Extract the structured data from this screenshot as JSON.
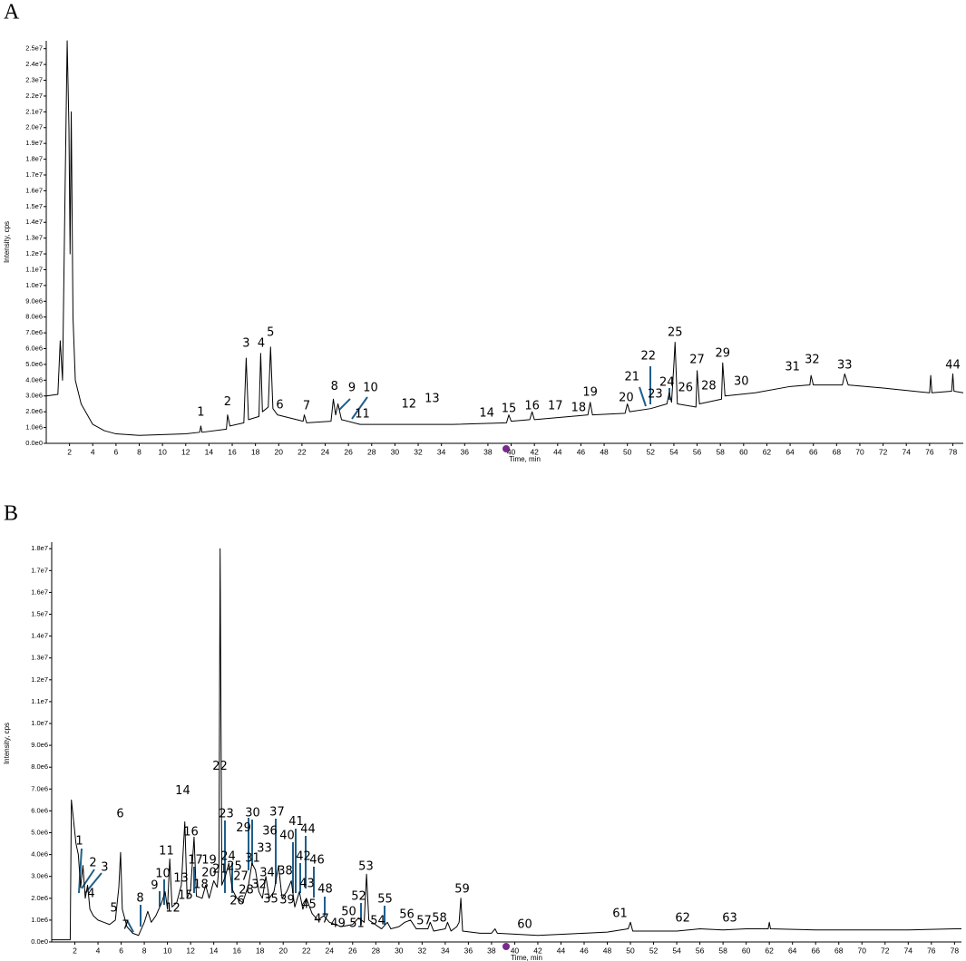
{
  "chart_data": [
    {
      "type": "line",
      "panel": "A",
      "xlabel": "Time, min",
      "ylabel": "Intensity, cps",
      "xlim": [
        0,
        78.9
      ],
      "ylim": [
        0,
        25500000.0
      ],
      "xticks": [
        2,
        4,
        6,
        8,
        10,
        12,
        14,
        16,
        18,
        20,
        22,
        24,
        26,
        28,
        30,
        32,
        34,
        36,
        38,
        40,
        42,
        44,
        46,
        48,
        50,
        52,
        54,
        56,
        58,
        60,
        62,
        64,
        66,
        68,
        70,
        72,
        74,
        76,
        78
      ],
      "yticks": [
        {
          "value": 0,
          "label": "0.0e0"
        },
        {
          "value": 1000000.0,
          "label": "1.0e6"
        },
        {
          "value": 2000000.0,
          "label": "2.0e6"
        },
        {
          "value": 3000000.0,
          "label": "3.0e6"
        },
        {
          "value": 4000000.0,
          "label": "4.0e6"
        },
        {
          "value": 5000000.0,
          "label": "5.0e6"
        },
        {
          "value": 6000000.0,
          "label": "6.0e6"
        },
        {
          "value": 7000000.0,
          "label": "7.0e6"
        },
        {
          "value": 8000000.0,
          "label": "8.0e6"
        },
        {
          "value": 9000000.0,
          "label": "9.0e6"
        },
        {
          "value": 10000000.0,
          "label": "1.0e7"
        },
        {
          "value": 11000000.0,
          "label": "1.1e7"
        },
        {
          "value": 12000000.0,
          "label": "1.2e7"
        },
        {
          "value": 13000000.0,
          "label": "1.3e7"
        },
        {
          "value": 14000000.0,
          "label": "1.4e7"
        },
        {
          "value": 15000000.0,
          "label": "1.5e7"
        },
        {
          "value": 16000000.0,
          "label": "1.6e7"
        },
        {
          "value": 17000000.0,
          "label": "1.7e7"
        },
        {
          "value": 18000000.0,
          "label": "1.8e7"
        },
        {
          "value": 19000000.0,
          "label": "1.9e7"
        },
        {
          "value": 20000000.0,
          "label": "2.0e7"
        },
        {
          "value": 21000000.0,
          "label": "2.1e7"
        },
        {
          "value": 22000000.0,
          "label": "2.2e7"
        },
        {
          "value": 23000000.0,
          "label": "2.3e7"
        },
        {
          "value": 24000000.0,
          "label": "2.4e7"
        },
        {
          "value": 25000000.0,
          "label": "2.5e7"
        }
      ],
      "series": [
        {
          "color": "#000000",
          "x": [
            0,
            1.0,
            1.2,
            1.4,
            1.6,
            1.8,
            1.95,
            2.05,
            2.15,
            2.3,
            2.5,
            3,
            4,
            5,
            6,
            8,
            10,
            12,
            13.2,
            13.3,
            13.4,
            15.5,
            15.6,
            15.8,
            17.0,
            17.2,
            17.4,
            18.3,
            18.45,
            18.6,
            19.1,
            19.3,
            19.5,
            19.9,
            22.1,
            22.2,
            22.4,
            24.5,
            24.7,
            24.9,
            25.1,
            25.4,
            27,
            30,
            35,
            39.6,
            39.8,
            40.0,
            41.6,
            41.8,
            42.0,
            46.6,
            46.8,
            47.0,
            49.8,
            50.0,
            50.2,
            52,
            53.4,
            53.6,
            53.8,
            54.0,
            54.1,
            54.3,
            55.9,
            56.0,
            56.2,
            58.1,
            58.2,
            58.4,
            61,
            64,
            65.7,
            65.8,
            66.0,
            68.5,
            68.7,
            69.0,
            72,
            76.0,
            76.1,
            76.2,
            77.9,
            78.0,
            78.1,
            78.9
          ],
          "values": [
            3000000.0,
            3100000.0,
            6500000.0,
            4000000.0,
            15000000.0,
            25500000.0,
            20000000.0,
            12000000.0,
            21000000.0,
            8000000.0,
            4000000.0,
            2500000.0,
            1200000.0,
            800000.0,
            600000.0,
            500000.0,
            550000.0,
            600000.0,
            700000.0,
            1100000.0,
            700000.0,
            900000.0,
            1800000.0,
            1100000.0,
            1300000.0,
            5400000.0,
            1500000.0,
            1700000.0,
            5700000.0,
            2000000.0,
            2300000.0,
            6100000.0,
            2200000.0,
            1800000.0,
            1400000.0,
            1800000.0,
            1300000.0,
            1400000.0,
            2800000.0,
            1800000.0,
            2500000.0,
            1500000.0,
            1200000.0,
            1200000.0,
            1200000.0,
            1300000.0,
            1800000.0,
            1400000.0,
            1500000.0,
            2000000.0,
            1500000.0,
            1800000.0,
            2600000.0,
            1800000.0,
            1900000.0,
            2500000.0,
            2000000.0,
            2200000.0,
            2500000.0,
            3200000.0,
            2600000.0,
            5000000.0,
            6400000.0,
            2500000.0,
            2300000.0,
            4600000.0,
            2500000.0,
            2800000.0,
            5100000.0,
            3000000.0,
            3200000.0,
            3600000.0,
            3700000.0,
            4300000.0,
            3700000.0,
            3700000.0,
            4400000.0,
            3700000.0,
            3500000.0,
            3200000.0,
            4300000.0,
            3200000.0,
            3300000.0,
            4400000.0,
            3300000.0,
            3200000.0
          ]
        }
      ],
      "peak_labels": {
        "texts": [
          "1",
          "2",
          "3",
          "4",
          "5",
          "6",
          "7",
          "8",
          "9",
          "10",
          "11",
          "12",
          "13",
          "14",
          "15",
          "16",
          "17",
          "18",
          "19",
          "20",
          "21",
          "22",
          "23",
          "24",
          "25",
          "26",
          "27",
          "28",
          "29",
          "30",
          "31",
          "32",
          "33",
          "44"
        ],
        "x": [
          13.3,
          15.6,
          17.2,
          18.5,
          19.3,
          20.1,
          22.4,
          24.8,
          26.3,
          27.9,
          27.2,
          31.2,
          33.2,
          37.9,
          39.8,
          41.8,
          43.8,
          45.8,
          46.8,
          49.9,
          50.4,
          51.8,
          52.4,
          53.4,
          54.1,
          55.0,
          56.0,
          57.0,
          58.2,
          59.8,
          64.2,
          65.9,
          68.7,
          78.0
        ],
        "y": [
          1950000.0,
          2600000.0,
          6330000.0,
          6330000.0,
          7000000.0,
          2400000.0,
          2360000.0,
          3600000.0,
          3500000.0,
          3500000.0,
          1840000.0,
          2470000.0,
          2820000.0,
          1900000.0,
          2180000.0,
          2360000.0,
          2360000.0,
          2240000.0,
          3220000.0,
          2870000.0,
          4200000.0,
          5520000.0,
          3100000.0,
          3850000.0,
          7000000.0,
          3500000.0,
          5290000.0,
          3620000.0,
          5690000.0,
          3910000.0,
          4830000.0,
          5290000.0,
          4940000.0,
          4940000.0
        ]
      }
    },
    {
      "type": "line",
      "panel": "B",
      "xlabel": "Time, min",
      "ylabel": "Intensity, cps",
      "xlim": [
        0,
        78.6
      ],
      "ylim": [
        0,
        18300000.0
      ],
      "xticks": [
        2,
        4,
        6,
        8,
        10,
        12,
        14,
        16,
        18,
        20,
        22,
        24,
        26,
        28,
        30,
        32,
        34,
        36,
        38,
        40,
        42,
        44,
        46,
        48,
        50,
        52,
        54,
        56,
        58,
        60,
        62,
        64,
        66,
        68,
        70,
        72,
        74,
        76,
        78
      ],
      "yticks": [
        {
          "value": 0,
          "label": "0.0e0"
        },
        {
          "value": 1000000.0,
          "label": "1.0e6"
        },
        {
          "value": 2000000.0,
          "label": "2.0e6"
        },
        {
          "value": 3000000.0,
          "label": "3.0e6"
        },
        {
          "value": 4000000.0,
          "label": "4.0e6"
        },
        {
          "value": 5000000.0,
          "label": "5.0e6"
        },
        {
          "value": 6000000.0,
          "label": "6.0e6"
        },
        {
          "value": 7000000.0,
          "label": "7.0e6"
        },
        {
          "value": 8000000.0,
          "label": "8.0e6"
        },
        {
          "value": 9000000.0,
          "label": "9.0e6"
        },
        {
          "value": 10000000.0,
          "label": "1.0e7"
        },
        {
          "value": 11000000.0,
          "label": "1.1e7"
        },
        {
          "value": 12000000.0,
          "label": "1.2e7"
        },
        {
          "value": 13000000.0,
          "label": "1.3e7"
        },
        {
          "value": 14000000.0,
          "label": "1.4e7"
        },
        {
          "value": 15000000.0,
          "label": "1.5e7"
        },
        {
          "value": 16000000.0,
          "label": "1.6e7"
        },
        {
          "value": 17000000.0,
          "label": "1.7e7"
        },
        {
          "value": 18000000.0,
          "label": "1.8e7"
        }
      ],
      "series": [
        {
          "color": "#000000",
          "x": [
            0,
            1.6,
            1.7,
            1.9,
            2.1,
            2.3,
            2.5,
            2.7,
            2.9,
            3.1,
            3.3,
            3.6,
            4,
            4.5,
            5,
            5.5,
            5.8,
            5.95,
            6.1,
            6.5,
            7,
            7.5,
            8,
            8.3,
            8.6,
            9,
            9.5,
            9.8,
            10.0,
            10.2,
            10.4,
            10.8,
            11.2,
            11.5,
            11.7,
            12.0,
            12.3,
            12.5,
            13,
            13.3,
            13.6,
            14,
            14.3,
            14.45,
            14.55,
            14.7,
            15,
            15.3,
            15.6,
            16,
            16.5,
            17,
            17.3,
            17.6,
            17.9,
            18.2,
            18.5,
            18.8,
            19.2,
            19.6,
            19.9,
            20.3,
            20.7,
            21,
            21.4,
            21.7,
            22,
            22.5,
            23,
            23.5,
            24,
            25,
            26,
            26.5,
            27,
            27.05,
            27.2,
            27.4,
            28.5,
            29,
            29.3,
            30,
            30.5,
            31,
            31.5,
            32.5,
            32.7,
            33,
            34,
            34.2,
            34.5,
            35,
            35.2,
            35.35,
            35.5,
            37,
            38,
            38.3,
            38.5,
            42,
            46,
            48,
            49.8,
            50,
            50.2,
            54,
            56,
            58,
            60,
            61.9,
            62.0,
            62.1,
            66,
            70,
            74,
            78,
            78.6
          ],
          "values": [
            100000.0,
            100000.0,
            6500000.0,
            5500000.0,
            4500000.0,
            4000000.0,
            2500000.0,
            3500000.0,
            2000000.0,
            2600000.0,
            1500000.0,
            1200000.0,
            1000000.0,
            900000.0,
            800000.0,
            1000000.0,
            2500000.0,
            4100000.0,
            1500000.0,
            700000.0,
            400000.0,
            300000.0,
            900000.0,
            1400000.0,
            900000.0,
            1200000.0,
            1800000.0,
            2300000.0,
            1500000.0,
            3800000.0,
            1600000.0,
            1800000.0,
            2600000.0,
            5500000.0,
            2000000.0,
            2400000.0,
            4800000.0,
            2100000.0,
            2000000.0,
            2600000.0,
            2000000.0,
            2800000.0,
            2500000.0,
            3500000.0,
            18000000.0,
            2600000.0,
            3000000.0,
            3600000.0,
            2400000.0,
            2000000.0,
            1800000.0,
            2600000.0,
            3600000.0,
            3300000.0,
            2300000.0,
            2000000.0,
            3000000.0,
            2000000.0,
            2300000.0,
            3500000.0,
            2000000.0,
            2300000.0,
            2800000.0,
            1600000.0,
            2300000.0,
            1500000.0,
            2000000.0,
            1300000.0,
            1000000.0,
            1200000.0,
            900000.0,
            700000.0,
            800000.0,
            1100000.0,
            900000.0,
            1500000.0,
            3100000.0,
            1000000.0,
            600000.0,
            900000.0,
            600000.0,
            700000.0,
            900000.0,
            1000000.0,
            600000.0,
            600000.0,
            900000.0,
            500000.0,
            600000.0,
            900000.0,
            500000.0,
            700000.0,
            900000.0,
            2000000.0,
            500000.0,
            400000.0,
            400000.0,
            600000.0,
            400000.0,
            300000.0,
            400000.0,
            450000.0,
            600000.0,
            900000.0,
            500000.0,
            500000.0,
            600000.0,
            550000.0,
            600000.0,
            600000.0,
            900000.0,
            600000.0,
            550000.0,
            550000.0,
            550000.0,
            600000.0,
            600000.0
          ]
        }
      ],
      "peak_labels": {
        "texts": [
          "1",
          "2",
          "3",
          "4",
          "5",
          "6",
          "7",
          "8",
          "9",
          "10",
          "11",
          "12",
          "13",
          "14",
          "15",
          "16",
          "17",
          "18",
          "19",
          "20",
          "21",
          "22",
          "23",
          "24",
          "25",
          "26",
          "27",
          "28",
          "29",
          "30",
          "31",
          "32",
          "33",
          "34",
          "35",
          "36",
          "37",
          "38",
          "39",
          "40",
          "41",
          "42",
          "43",
          "44",
          "45",
          "46",
          "47",
          "48",
          "49",
          "50",
          "51",
          "52",
          "53",
          "54",
          "55",
          "56",
          "57",
          "58",
          "59",
          "60",
          "61",
          "62",
          "63"
        ],
        "x": [
          2.39,
          3.57,
          4.58,
          3.41,
          5.37,
          5.92,
          6.39,
          7.64,
          8.89,
          9.6,
          9.91,
          10.46,
          11.17,
          11.32,
          11.56,
          12.03,
          12.42,
          12.89,
          13.6,
          13.6,
          14.54,
          14.54,
          15.09,
          15.24,
          15.79,
          16.03,
          16.34,
          16.81,
          16.58,
          17.36,
          17.36,
          17.91,
          18.38,
          18.61,
          18.93,
          18.85,
          19.47,
          20.18,
          20.34,
          20.34,
          21.12,
          21.75,
          22.06,
          22.14,
          22.22,
          22.92,
          23.31,
          23.63,
          24.73,
          25.67,
          26.37,
          26.53,
          27.15,
          28.17,
          28.8,
          30.68,
          32.17,
          33.5,
          35.46,
          40.87,
          49.1,
          54.51,
          58.58
        ],
        "y": [
          4610000.0,
          3620000.0,
          3410000.0,
          2200000.0,
          1540000.0,
          5860000.0,
          750000.0,
          2000000.0,
          2580000.0,
          3120000.0,
          4160000.0,
          1540000.0,
          2910000.0,
          6900000.0,
          2120000.0,
          5030000.0,
          3740000.0,
          2620000.0,
          3740000.0,
          3160000.0,
          3330000.0,
          8020000.0,
          5860000.0,
          3910000.0,
          3450000.0,
          1870000.0,
          2990000.0,
          2370000.0,
          5200000.0,
          5900000.0,
          3820000.0,
          2620000.0,
          4280000.0,
          3160000.0,
          1950000.0,
          5070000.0,
          5940000.0,
          3240000.0,
          1910000.0,
          4860000.0,
          5490000.0,
          3910000.0,
          2660000.0,
          5150000.0,
          1700000.0,
          3740000.0,
          1040000.0,
          2410000.0,
          830000.0,
          1370000.0,
          830000.0,
          2080000.0,
          3450000.0,
          960000.0,
          1950000.0,
          1250000.0,
          960000.0,
          1080000.0,
          2410000.0,
          790000.0,
          1290000.0,
          1080000.0,
          1080000.0
        ]
      }
    }
  ]
}
